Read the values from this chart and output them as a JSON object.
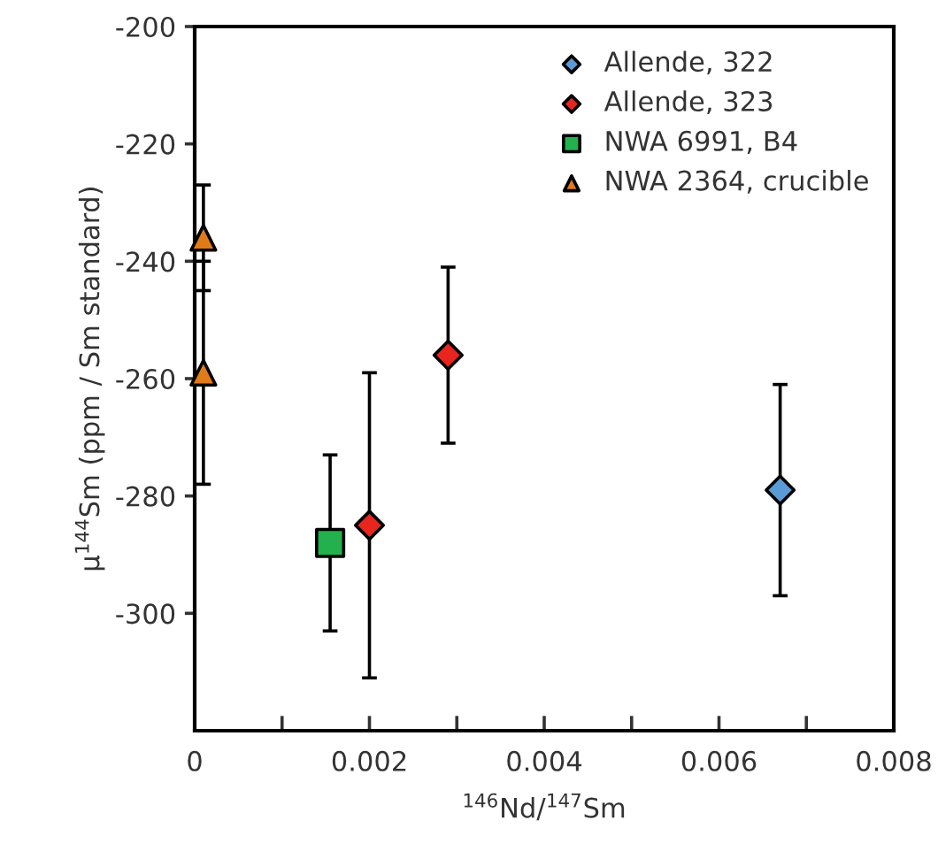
{
  "chart_data": {
    "type": "scatter",
    "xlabel": "$^{146}$Nd/$^{147}$Sm",
    "ylabel": "μ$^{144}$Sm (ppm / Sm standard)",
    "series": [
      {
        "name": "Allende, 322",
        "color": "#5b9bd5",
        "marker": "diamond",
        "x": [
          0.0067
        ],
        "values": [
          -279
        ],
        "errors": [
          18
        ]
      },
      {
        "name": "Allende, 323",
        "color": "#e8251f",
        "marker": "diamond",
        "x": [
          0.002,
          0.0029
        ],
        "values": [
          -285,
          -256
        ],
        "errors": [
          26,
          15
        ]
      },
      {
        "name": "NWA 6991, B4",
        "color": "#22b14c",
        "marker": "square",
        "x": [
          0.00155
        ],
        "values": [
          -288
        ],
        "errors": [
          15
        ]
      },
      {
        "name": "NWA 2364, crucible",
        "color": "#e07b1a",
        "marker": "triangle",
        "x": [
          0.0001,
          0.0001
        ],
        "values": [
          -236,
          -259
        ],
        "errors": [
          9,
          19
        ]
      }
    ],
    "xlim": [
      0,
      0.008
    ],
    "xticks": [
      0,
      {
        "value": 0.001,
        "label": null
      },
      0.002,
      {
        "value": 0.003,
        "label": null
      },
      0.004,
      {
        "value": 0.005,
        "label": null
      },
      0.006,
      {
        "value": 0.007,
        "label": null
      },
      0.008
    ],
    "ylim": [
      -320,
      -200
    ],
    "yticks": [
      -300,
      -280,
      -260,
      -240,
      -220,
      -200
    ],
    "grid": false,
    "legend": "top right"
  }
}
